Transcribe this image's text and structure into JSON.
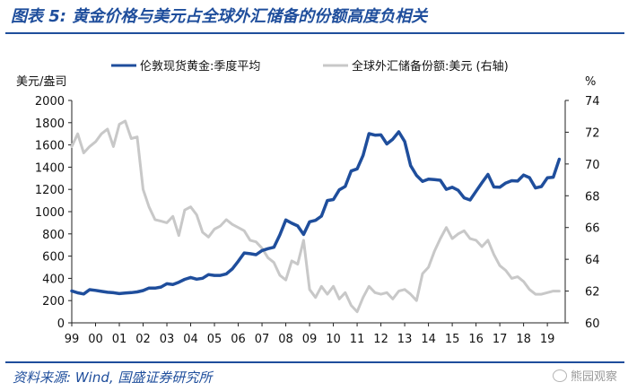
{
  "header": {
    "title": "图表 5:  黄金价格与美元占全球外汇储备的份额高度负相关"
  },
  "footer": {
    "source": "资料来源:  Wind,  国盛证券研究所",
    "watermark": "熊园观察"
  },
  "chart_data": {
    "type": "line",
    "title": "",
    "xlabel": "",
    "x_ticks": [
      "99",
      "00",
      "01",
      "02",
      "03",
      "04",
      "05",
      "06",
      "07",
      "08",
      "09",
      "10",
      "11",
      "12",
      "13",
      "14",
      "15",
      "16",
      "17",
      "18",
      "19"
    ],
    "x_range": [
      1999.0,
      2019.75
    ],
    "left_axis": {
      "unit": "美元/盎司",
      "range": [
        0,
        2000
      ],
      "ticks": [
        "0",
        "200",
        "400",
        "600",
        "800",
        "1000",
        "1200",
        "1400",
        "1600",
        "1800",
        "2000"
      ]
    },
    "right_axis": {
      "unit": "%",
      "range": [
        60,
        74
      ],
      "ticks": [
        "60",
        "62",
        "64",
        "66",
        "68",
        "70",
        "72",
        "74"
      ]
    },
    "legend": {
      "position": "top",
      "items": [
        {
          "label": "伦敦现货黄金:季度平均",
          "color": "#1f4e9c"
        },
        {
          "label": "全球外汇储备份额:美元  (右轴)",
          "color": "#c8c8c8"
        }
      ]
    },
    "series": [
      {
        "name": "伦敦现货黄金:季度平均",
        "axis": "left",
        "color": "#1f4e9c",
        "x": [
          1999.0,
          1999.25,
          1999.5,
          1999.75,
          2000.0,
          2000.25,
          2000.5,
          2000.75,
          2001.0,
          2001.25,
          2001.5,
          2001.75,
          2002.0,
          2002.25,
          2002.5,
          2002.75,
          2003.0,
          2003.25,
          2003.5,
          2003.75,
          2004.0,
          2004.25,
          2004.5,
          2004.75,
          2005.0,
          2005.25,
          2005.5,
          2005.75,
          2006.0,
          2006.25,
          2006.5,
          2006.75,
          2007.0,
          2007.25,
          2007.5,
          2007.75,
          2008.0,
          2008.25,
          2008.5,
          2008.75,
          2009.0,
          2009.25,
          2009.5,
          2009.75,
          2010.0,
          2010.25,
          2010.5,
          2010.75,
          2011.0,
          2011.25,
          2011.5,
          2011.75,
          2012.0,
          2012.25,
          2012.5,
          2012.75,
          2013.0,
          2013.25,
          2013.5,
          2013.75,
          2014.0,
          2014.25,
          2014.5,
          2014.75,
          2015.0,
          2015.25,
          2015.5,
          2015.75,
          2016.0,
          2016.25,
          2016.5,
          2016.75,
          2017.0,
          2017.25,
          2017.5,
          2017.75,
          2018.0,
          2018.25,
          2018.5,
          2018.75,
          2019.0,
          2019.25,
          2019.5
        ],
        "values": [
          287,
          270,
          260,
          298,
          292,
          283,
          275,
          271,
          263,
          268,
          272,
          278,
          290,
          313,
          312,
          322,
          352,
          345,
          365,
          391,
          408,
          393,
          401,
          434,
          427,
          427,
          440,
          485,
          553,
          628,
          622,
          613,
          650,
          667,
          680,
          790,
          925,
          896,
          872,
          795,
          909,
          922,
          960,
          1100,
          1109,
          1196,
          1227,
          1365,
          1385,
          1506,
          1702,
          1688,
          1690,
          1609,
          1652,
          1718,
          1631,
          1414,
          1326,
          1272,
          1293,
          1288,
          1282,
          1201,
          1219,
          1192,
          1124,
          1105,
          1183,
          1260,
          1335,
          1222,
          1219,
          1257,
          1278,
          1275,
          1329,
          1306,
          1213,
          1226,
          1304,
          1310,
          1472
        ]
      },
      {
        "name": "全球外汇储备份额:美元  (右轴)",
        "axis": "right",
        "color": "#c8c8c8",
        "x": [
          1999.0,
          1999.25,
          1999.5,
          1999.75,
          2000.0,
          2000.25,
          2000.5,
          2000.75,
          2001.0,
          2001.25,
          2001.5,
          2001.75,
          2002.0,
          2002.25,
          2002.5,
          2002.75,
          2003.0,
          2003.25,
          2003.5,
          2003.75,
          2004.0,
          2004.25,
          2004.5,
          2004.75,
          2005.0,
          2005.25,
          2005.5,
          2005.75,
          2006.0,
          2006.25,
          2006.5,
          2006.75,
          2007.0,
          2007.25,
          2007.5,
          2007.75,
          2008.0,
          2008.25,
          2008.5,
          2008.75,
          2009.0,
          2009.25,
          2009.5,
          2009.75,
          2010.0,
          2010.25,
          2010.5,
          2010.75,
          2011.0,
          2011.25,
          2011.5,
          2011.75,
          2012.0,
          2012.25,
          2012.5,
          2012.75,
          2013.0,
          2013.25,
          2013.5,
          2013.75,
          2014.0,
          2014.25,
          2014.5,
          2014.75,
          2015.0,
          2015.25,
          2015.5,
          2015.75,
          2016.0,
          2016.25,
          2016.5,
          2016.75,
          2017.0,
          2017.25,
          2017.5,
          2017.75,
          2018.0,
          2018.25,
          2018.5,
          2018.75,
          2019.0,
          2019.25,
          2019.5
        ],
        "values": [
          71.1,
          71.9,
          70.7,
          71.1,
          71.4,
          71.9,
          72.2,
          71.1,
          72.5,
          72.7,
          71.6,
          71.7,
          68.4,
          67.3,
          66.5,
          66.4,
          66.3,
          66.7,
          65.5,
          67.1,
          67.3,
          66.8,
          65.7,
          65.4,
          65.9,
          66.1,
          66.5,
          66.2,
          66.0,
          65.8,
          65.2,
          65.1,
          64.7,
          64.1,
          63.8,
          63.0,
          62.7,
          63.9,
          63.7,
          65.2,
          62.1,
          61.6,
          62.3,
          61.8,
          62.3,
          61.5,
          61.9,
          61.1,
          60.7,
          61.6,
          62.3,
          61.9,
          61.8,
          61.9,
          61.5,
          62.0,
          62.1,
          61.8,
          61.4,
          63.1,
          63.5,
          64.5,
          65.3,
          66.0,
          65.3,
          65.6,
          65.8,
          65.3,
          65.2,
          64.8,
          65.2,
          64.3,
          63.6,
          63.3,
          62.8,
          62.9,
          62.6,
          62.1,
          61.8,
          61.8,
          61.9,
          62.0,
          62.0
        ]
      }
    ]
  }
}
